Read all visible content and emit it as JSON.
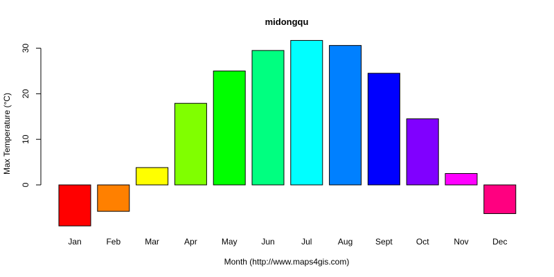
{
  "chart_data": {
    "type": "bar",
    "title": "midongqu",
    "xlabel": "Month (http://www.maps4gis.com)",
    "ylabel": "Max Temperature (°C)",
    "categories": [
      "Jan",
      "Feb",
      "Mar",
      "Apr",
      "May",
      "Jun",
      "Jul",
      "Aug",
      "Sept",
      "Oct",
      "Nov",
      "Dec"
    ],
    "values": [
      -9.0,
      -5.8,
      3.8,
      17.9,
      25.0,
      29.5,
      31.7,
      30.6,
      24.5,
      14.5,
      2.5,
      -6.3
    ],
    "colors": [
      "#FF0000",
      "#FF8000",
      "#FFFF00",
      "#80FF00",
      "#00FF00",
      "#00FF80",
      "#00FFFF",
      "#0080FF",
      "#0000FF",
      "#8000FF",
      "#FF00FF",
      "#FF0080"
    ],
    "yticks": [
      0,
      10,
      20,
      30
    ],
    "ylim": [
      -9.0,
      31.7
    ],
    "grid": false,
    "legend": "none"
  }
}
